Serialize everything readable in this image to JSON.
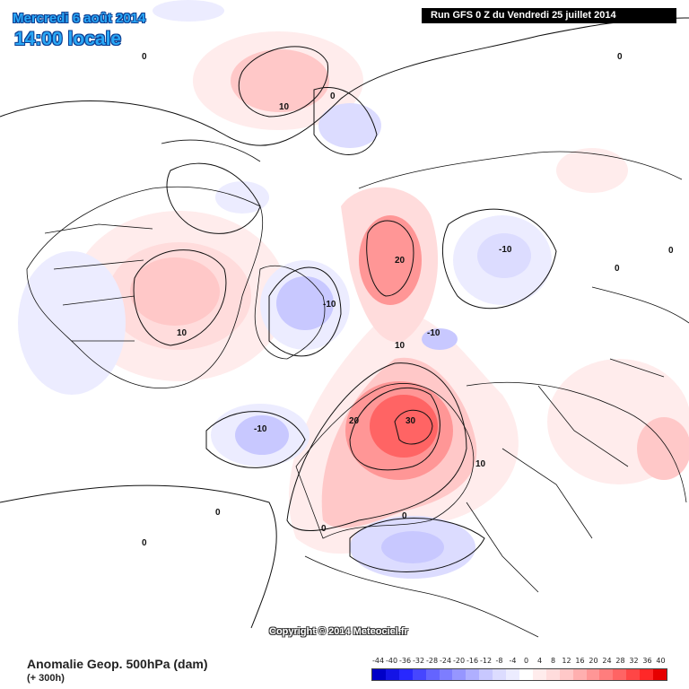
{
  "header": {
    "date_line": "Mercredi 6 août 2014",
    "time_line": "14:00 locale",
    "run_line": "Run GFS 0 Z du Vendredi 25 juillet 2014"
  },
  "copyright": "Copyright © 2014 Meteociel.fr",
  "footer": {
    "title": "Anomalie Geop. 500hPa (dam)",
    "subtitle": "(+ 300h)"
  },
  "legend": {
    "labels": [
      "-44",
      "-40",
      "-36",
      "-32",
      "-28",
      "-24",
      "-20",
      "-16",
      "-12",
      "-8",
      "-4",
      "0",
      "4",
      "8",
      "12",
      "16",
      "20",
      "24",
      "28",
      "32",
      "36",
      "40"
    ],
    "colors": [
      "#0000c8",
      "#1414e6",
      "#2828ff",
      "#4646ff",
      "#6464ff",
      "#7d7dff",
      "#9696ff",
      "#afafff",
      "#c8c8ff",
      "#dcdcff",
      "#ececff",
      "#ffffff",
      "#ffecec",
      "#ffdcdc",
      "#ffc8c8",
      "#ffafaf",
      "#ff9696",
      "#ff7d7d",
      "#ff6464",
      "#ff4646",
      "#ff2828",
      "#e60000"
    ]
  },
  "anomalies": [
    {
      "label": "-10",
      "kind": "negative-center",
      "color": "#6464ff"
    },
    {
      "label": "-10",
      "kind": "negative-center",
      "color": "#6464ff"
    },
    {
      "label": "-10",
      "kind": "negative-center",
      "color": "#6464ff"
    },
    {
      "label": "-10",
      "kind": "negative-center",
      "color": "#6464ff"
    },
    {
      "label": "20",
      "kind": "positive-center",
      "color": "#ff6464"
    },
    {
      "label": "30",
      "kind": "positive-center",
      "color": "#ff2828"
    },
    {
      "label": "10",
      "kind": "positive-center",
      "color": "#ff9696"
    },
    {
      "label": "10",
      "kind": "positive-center",
      "color": "#ff9696"
    }
  ],
  "contour_labels": [
    "0",
    "0",
    "0",
    "0",
    "0",
    "0",
    "0",
    "0",
    "0",
    "10",
    "10",
    "20"
  ]
}
